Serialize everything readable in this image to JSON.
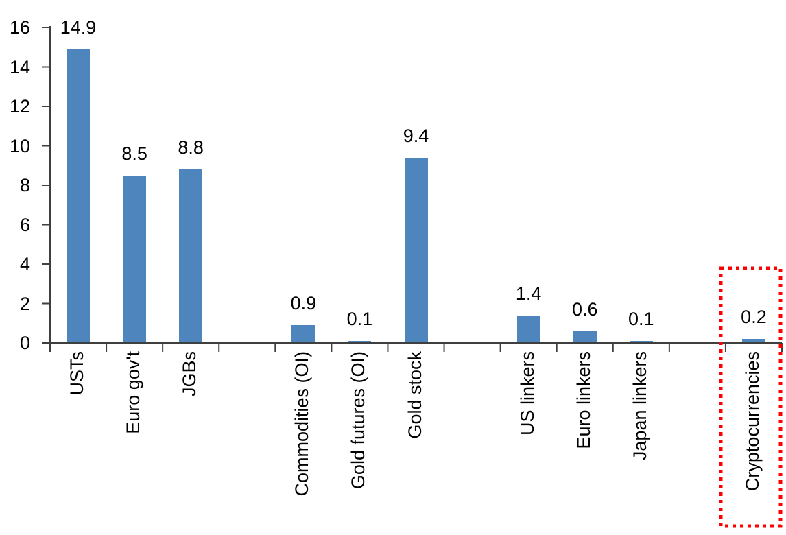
{
  "chart_data": {
    "type": "bar",
    "title": "",
    "xlabel": "",
    "ylabel": "",
    "categories": [
      "USTs",
      "Euro gov't",
      "JGBs",
      "Commodities (OI)",
      "Gold futures (OI)",
      "Gold stock",
      "US linkers",
      "Euro linkers",
      "Japan linkers",
      "Cryptocurrencies"
    ],
    "values": [
      14.9,
      8.5,
      8.8,
      0.9,
      0.1,
      9.4,
      1.4,
      0.6,
      0.1,
      0.2
    ],
    "value_labels": [
      "14.9",
      "8.5",
      "8.8",
      "0.9",
      "0.1",
      "9.4",
      "1.4",
      "0.6",
      "0.1",
      "0.2"
    ],
    "slot_indices": [
      0,
      1,
      2,
      4,
      5,
      6,
      8,
      9,
      10,
      12
    ],
    "total_slots": 13,
    "ylim": [
      0,
      16
    ],
    "yticks": [
      0,
      2,
      4,
      6,
      8,
      10,
      12,
      14,
      16
    ],
    "grid": false,
    "legend": null,
    "bar_color": "#4E85BD",
    "axis_color": "#3F3F3F",
    "label_color": "#000000",
    "highlight": {
      "category": "Cryptocurrencies",
      "shape": "dotted-rectangle",
      "color": "#FF0000"
    }
  }
}
